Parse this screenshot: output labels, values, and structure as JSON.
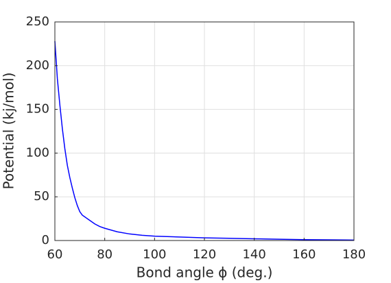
{
  "chart_data": {
    "type": "line",
    "x_label": "Bond angle ϕ (deg.)",
    "y_label": "Potential (kj/mol)",
    "series": [
      {
        "name": "Potential",
        "color": "#0000ff",
        "x": [
          60,
          61,
          62,
          63,
          64,
          65,
          66,
          67,
          68,
          69,
          70,
          71,
          72,
          74,
          76,
          78,
          80,
          85,
          90,
          95,
          100,
          110,
          120,
          130,
          140,
          150,
          160,
          170,
          180
        ],
        "values": [
          228,
          185,
          155,
          128,
          105,
          86,
          72,
          60,
          49,
          40,
          33,
          29,
          27,
          23,
          19,
          16,
          14,
          10,
          7.5,
          6,
          5,
          4,
          3,
          2.5,
          2,
          1.5,
          1,
          0.8,
          0.5
        ]
      }
    ],
    "xlim": [
      60,
      180
    ],
    "xticks": [
      60,
      80,
      100,
      120,
      140,
      160,
      180
    ],
    "ylim": [
      0,
      250
    ],
    "yticks": [
      0,
      50,
      100,
      150,
      200,
      250
    ],
    "grid": true
  }
}
